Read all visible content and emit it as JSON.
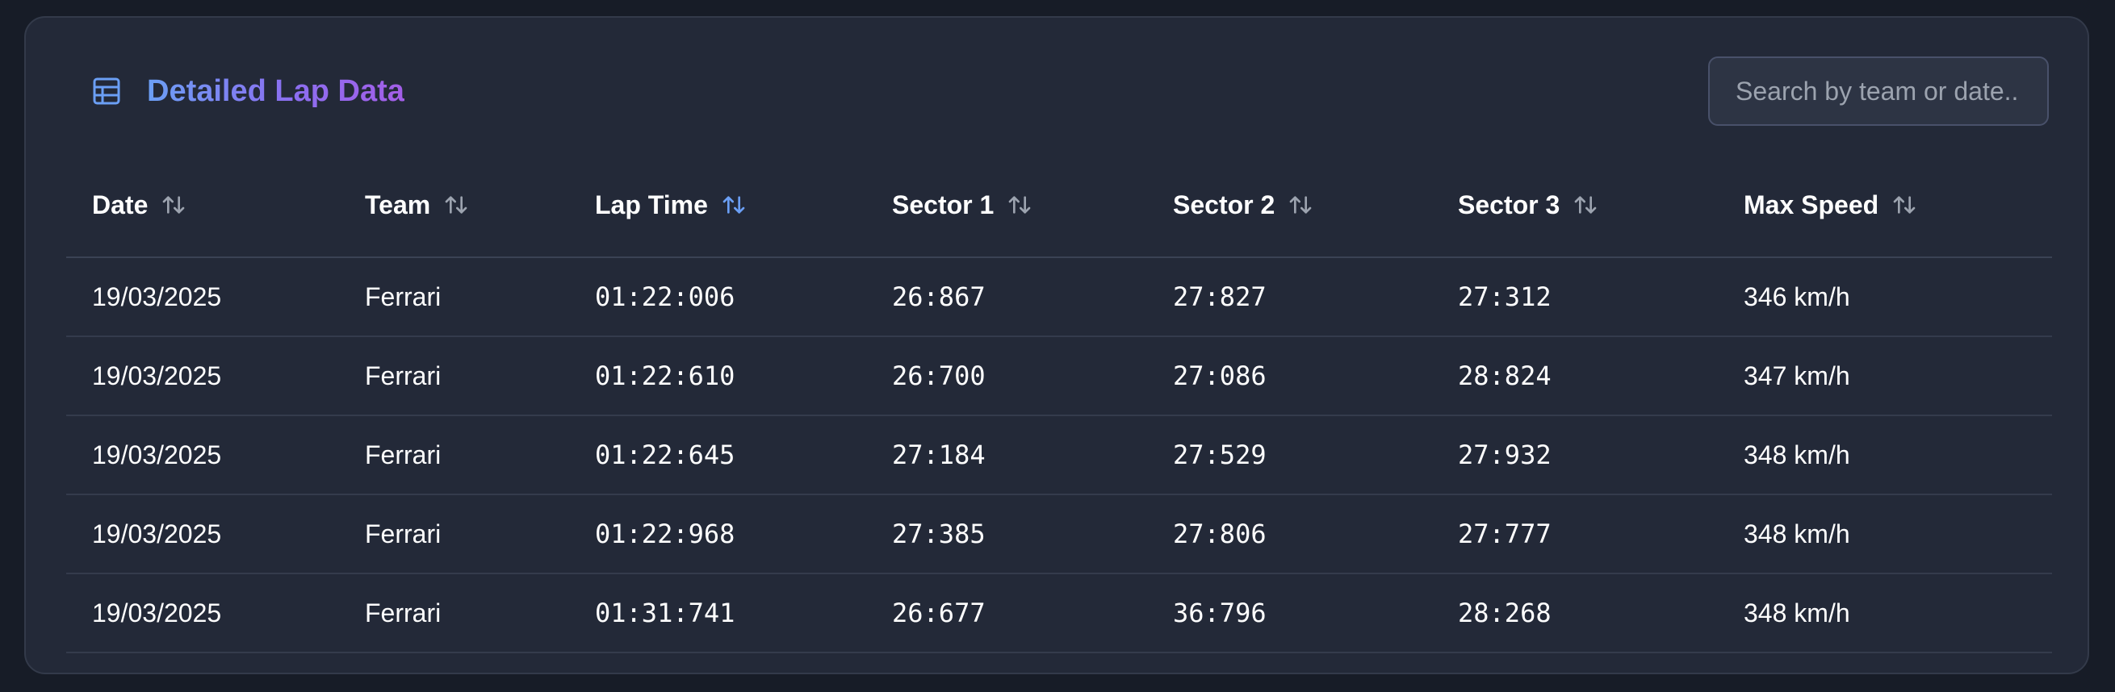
{
  "header": {
    "title": "Detailed Lap Data",
    "title_icon": "table-icon",
    "search_placeholder": "Search by team or date.."
  },
  "colors": {
    "background": "#171c27",
    "card": "#232938",
    "title_gradient_start": "#6b9ff5",
    "title_gradient_end": "#a35ee8",
    "sort_icon": "#9ca3af",
    "sort_icon_active": "#6b9ff5"
  },
  "table": {
    "active_sort_column": "lap_time",
    "columns": [
      {
        "key": "date",
        "label": "Date",
        "sort_icon": "sort-arrows-icon"
      },
      {
        "key": "team",
        "label": "Team",
        "sort_icon": "sort-arrows-icon"
      },
      {
        "key": "lap_time",
        "label": "Lap Time",
        "sort_icon": "sort-arrows-icon"
      },
      {
        "key": "sector1",
        "label": "Sector 1",
        "sort_icon": "sort-arrows-icon"
      },
      {
        "key": "sector2",
        "label": "Sector 2",
        "sort_icon": "sort-arrows-icon"
      },
      {
        "key": "sector3",
        "label": "Sector 3",
        "sort_icon": "sort-arrows-icon"
      },
      {
        "key": "max_speed",
        "label": "Max Speed",
        "sort_icon": "sort-arrows-icon"
      }
    ],
    "rows": [
      {
        "date": "19/03/2025",
        "team": "Ferrari",
        "lap_time": "01:22:006",
        "sector1": "26:867",
        "sector2": "27:827",
        "sector3": "27:312",
        "max_speed": "346 km/h"
      },
      {
        "date": "19/03/2025",
        "team": "Ferrari",
        "lap_time": "01:22:610",
        "sector1": "26:700",
        "sector2": "27:086",
        "sector3": "28:824",
        "max_speed": "347 km/h"
      },
      {
        "date": "19/03/2025",
        "team": "Ferrari",
        "lap_time": "01:22:645",
        "sector1": "27:184",
        "sector2": "27:529",
        "sector3": "27:932",
        "max_speed": "348 km/h"
      },
      {
        "date": "19/03/2025",
        "team": "Ferrari",
        "lap_time": "01:22:968",
        "sector1": "27:385",
        "sector2": "27:806",
        "sector3": "27:777",
        "max_speed": "348 km/h"
      },
      {
        "date": "19/03/2025",
        "team": "Ferrari",
        "lap_time": "01:31:741",
        "sector1": "26:677",
        "sector2": "36:796",
        "sector3": "28:268",
        "max_speed": "348 km/h"
      }
    ]
  }
}
